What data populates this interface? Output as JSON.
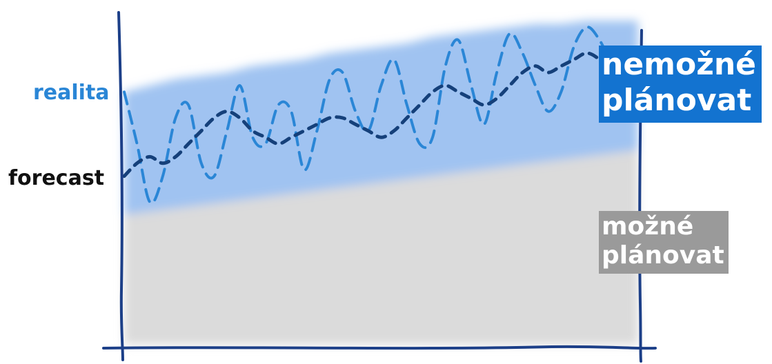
{
  "chart_data": {
    "type": "line",
    "title": "",
    "xlabel": "",
    "ylabel": "",
    "x": [
      0,
      1,
      2,
      3,
      4,
      5,
      6,
      7,
      8,
      9,
      10,
      11,
      12,
      13,
      14,
      15,
      16,
      17,
      18,
      19,
      20,
      21,
      22,
      23,
      24,
      25,
      26,
      27,
      28,
      29,
      30,
      31,
      32,
      33,
      34,
      35,
      36,
      37,
      38,
      39,
      40
    ],
    "xlim": [
      0,
      40
    ],
    "ylim": [
      0,
      100
    ],
    "grid": false,
    "series": [
      {
        "name": "realita",
        "color": "#2a86d6",
        "dash": "dashed",
        "values": [
          78,
          62,
          44,
          52,
          70,
          74,
          56,
          52,
          66,
          80,
          64,
          62,
          74,
          72,
          54,
          66,
          82,
          84,
          72,
          66,
          80,
          88,
          74,
          62,
          64,
          86,
          94,
          80,
          68,
          84,
          96,
          90,
          80,
          72,
          78,
          92,
          98,
          94,
          86,
          80,
          84
        ]
      },
      {
        "name": "forecast",
        "color": "#15407a",
        "dash": "dashed",
        "values": [
          52,
          56,
          58,
          56,
          58,
          62,
          66,
          70,
          72,
          70,
          66,
          64,
          62,
          64,
          66,
          68,
          70,
          70,
          68,
          66,
          64,
          66,
          70,
          74,
          78,
          80,
          78,
          76,
          74,
          76,
          80,
          84,
          86,
          84,
          86,
          88,
          90,
          88,
          84,
          82,
          84
        ]
      }
    ],
    "regions": [
      {
        "name": "nemožné plánovat",
        "line1": "nemožné",
        "line2": "plánovat",
        "color": "#1373d0",
        "band_color": "#8fb9ee",
        "lower_values": [
          40,
          41,
          42,
          43,
          44,
          45,
          46,
          47,
          48,
          49,
          50,
          51,
          52,
          53,
          54,
          55,
          56,
          57,
          58,
          59,
          60
        ],
        "upper_values": [
          78,
          80,
          82,
          83,
          84,
          86,
          87,
          88,
          90,
          91,
          92,
          93,
          95,
          96,
          97,
          98,
          99,
          99,
          100,
          100,
          100
        ]
      },
      {
        "name": "možné plánovat",
        "line1": "možné",
        "line2": "plánovat",
        "color": "#9a9a9a",
        "band_color": "#d9d9d9",
        "lower_values": [
          0,
          0,
          0,
          0,
          0,
          0,
          0,
          0,
          0,
          0,
          0,
          0,
          0,
          0,
          0,
          0,
          0,
          0,
          0,
          0,
          0
        ],
        "upper_values": [
          40,
          41,
          42,
          43,
          44,
          45,
          46,
          47,
          48,
          49,
          50,
          51,
          52,
          53,
          54,
          55,
          56,
          57,
          58,
          59,
          60
        ]
      }
    ]
  },
  "labels": {
    "realita": "realita",
    "forecast": "forecast"
  },
  "colors": {
    "axis": "#1c3f88"
  }
}
